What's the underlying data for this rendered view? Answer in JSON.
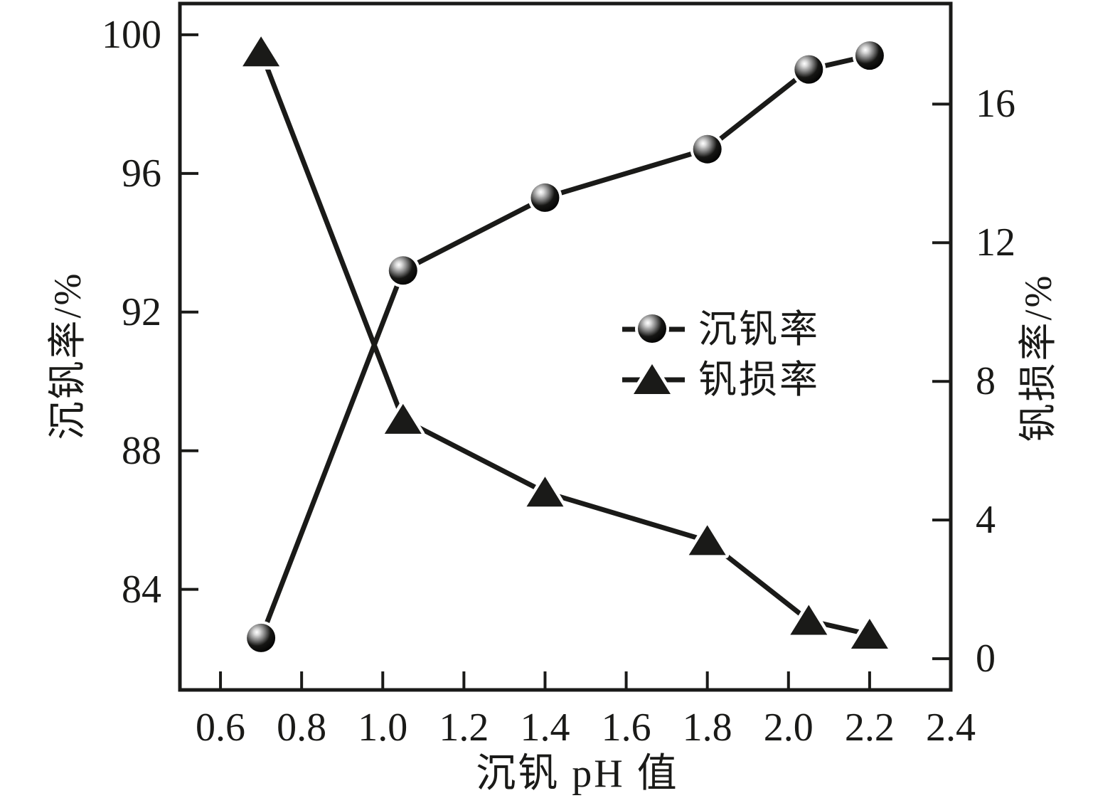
{
  "colors": {
    "ink": "#1a1a18",
    "background": "#ffffff",
    "marker_highlight": "#ffffff"
  },
  "chart_data": {
    "type": "line",
    "x": [
      0.7,
      1.05,
      1.4,
      1.8,
      2.05,
      2.2
    ],
    "series": [
      {
        "name": "沉钒率",
        "axis": "left",
        "marker": "circle",
        "values": [
          82.6,
          93.2,
          95.3,
          96.7,
          99.0,
          99.4
        ]
      },
      {
        "name": "钒损率",
        "axis": "right",
        "marker": "triangle",
        "values": [
          17.5,
          6.9,
          4.8,
          3.4,
          1.1,
          0.7
        ]
      }
    ],
    "title": "",
    "xlabel": "沉钒 pH 值",
    "ylabel_left": "沉钒率/%",
    "ylabel_right": "钒损率/%",
    "x_ticks": [
      0.6,
      0.8,
      1.0,
      1.2,
      1.4,
      1.6,
      1.8,
      2.0,
      2.2,
      2.4
    ],
    "x_tick_labels": [
      "0.6",
      "0.8",
      "1.0",
      "1.2",
      "1.4",
      "1.6",
      "1.8",
      "2.0",
      "2.2",
      "2.4"
    ],
    "y_left_ticks": [
      100,
      96,
      92,
      88,
      84
    ],
    "y_left_tick_labels": [
      "100",
      "96",
      "92",
      "88",
      "84"
    ],
    "y_right_ticks": [
      16,
      12,
      8,
      4,
      0
    ],
    "y_right_tick_labels": [
      "16",
      "12",
      "8",
      "4",
      "0"
    ],
    "xlim": [
      0.5,
      2.4
    ],
    "ylim_left": [
      81.1,
      100.9
    ],
    "ylim_right": [
      -0.9,
      18.9
    ],
    "grid": false,
    "legend_position": "center-right"
  },
  "legend": {
    "items": [
      {
        "label": "沉钒率",
        "icon": "circle-marker-icon"
      },
      {
        "label": "钒损率",
        "icon": "triangle-marker-icon"
      }
    ]
  }
}
